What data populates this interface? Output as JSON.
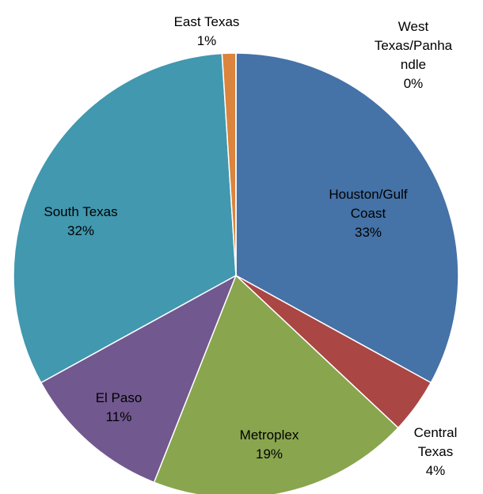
{
  "chart_data": {
    "type": "pie",
    "categories": [
      "Houston/Gulf Coast",
      "Central Texas",
      "Metroplex",
      "El Paso",
      "South Texas",
      "East Texas",
      "West Texas/Panhandle"
    ],
    "values": [
      33,
      4,
      19,
      11,
      32,
      1,
      0
    ],
    "value_labels": [
      "33%",
      "4%",
      "19%",
      "11%",
      "32%",
      "1%",
      "0%"
    ],
    "colors": [
      "#4572a7",
      "#aa4643",
      "#89a54e",
      "#71588f",
      "#4198af",
      "#db843d",
      "#93a9cf"
    ]
  }
}
